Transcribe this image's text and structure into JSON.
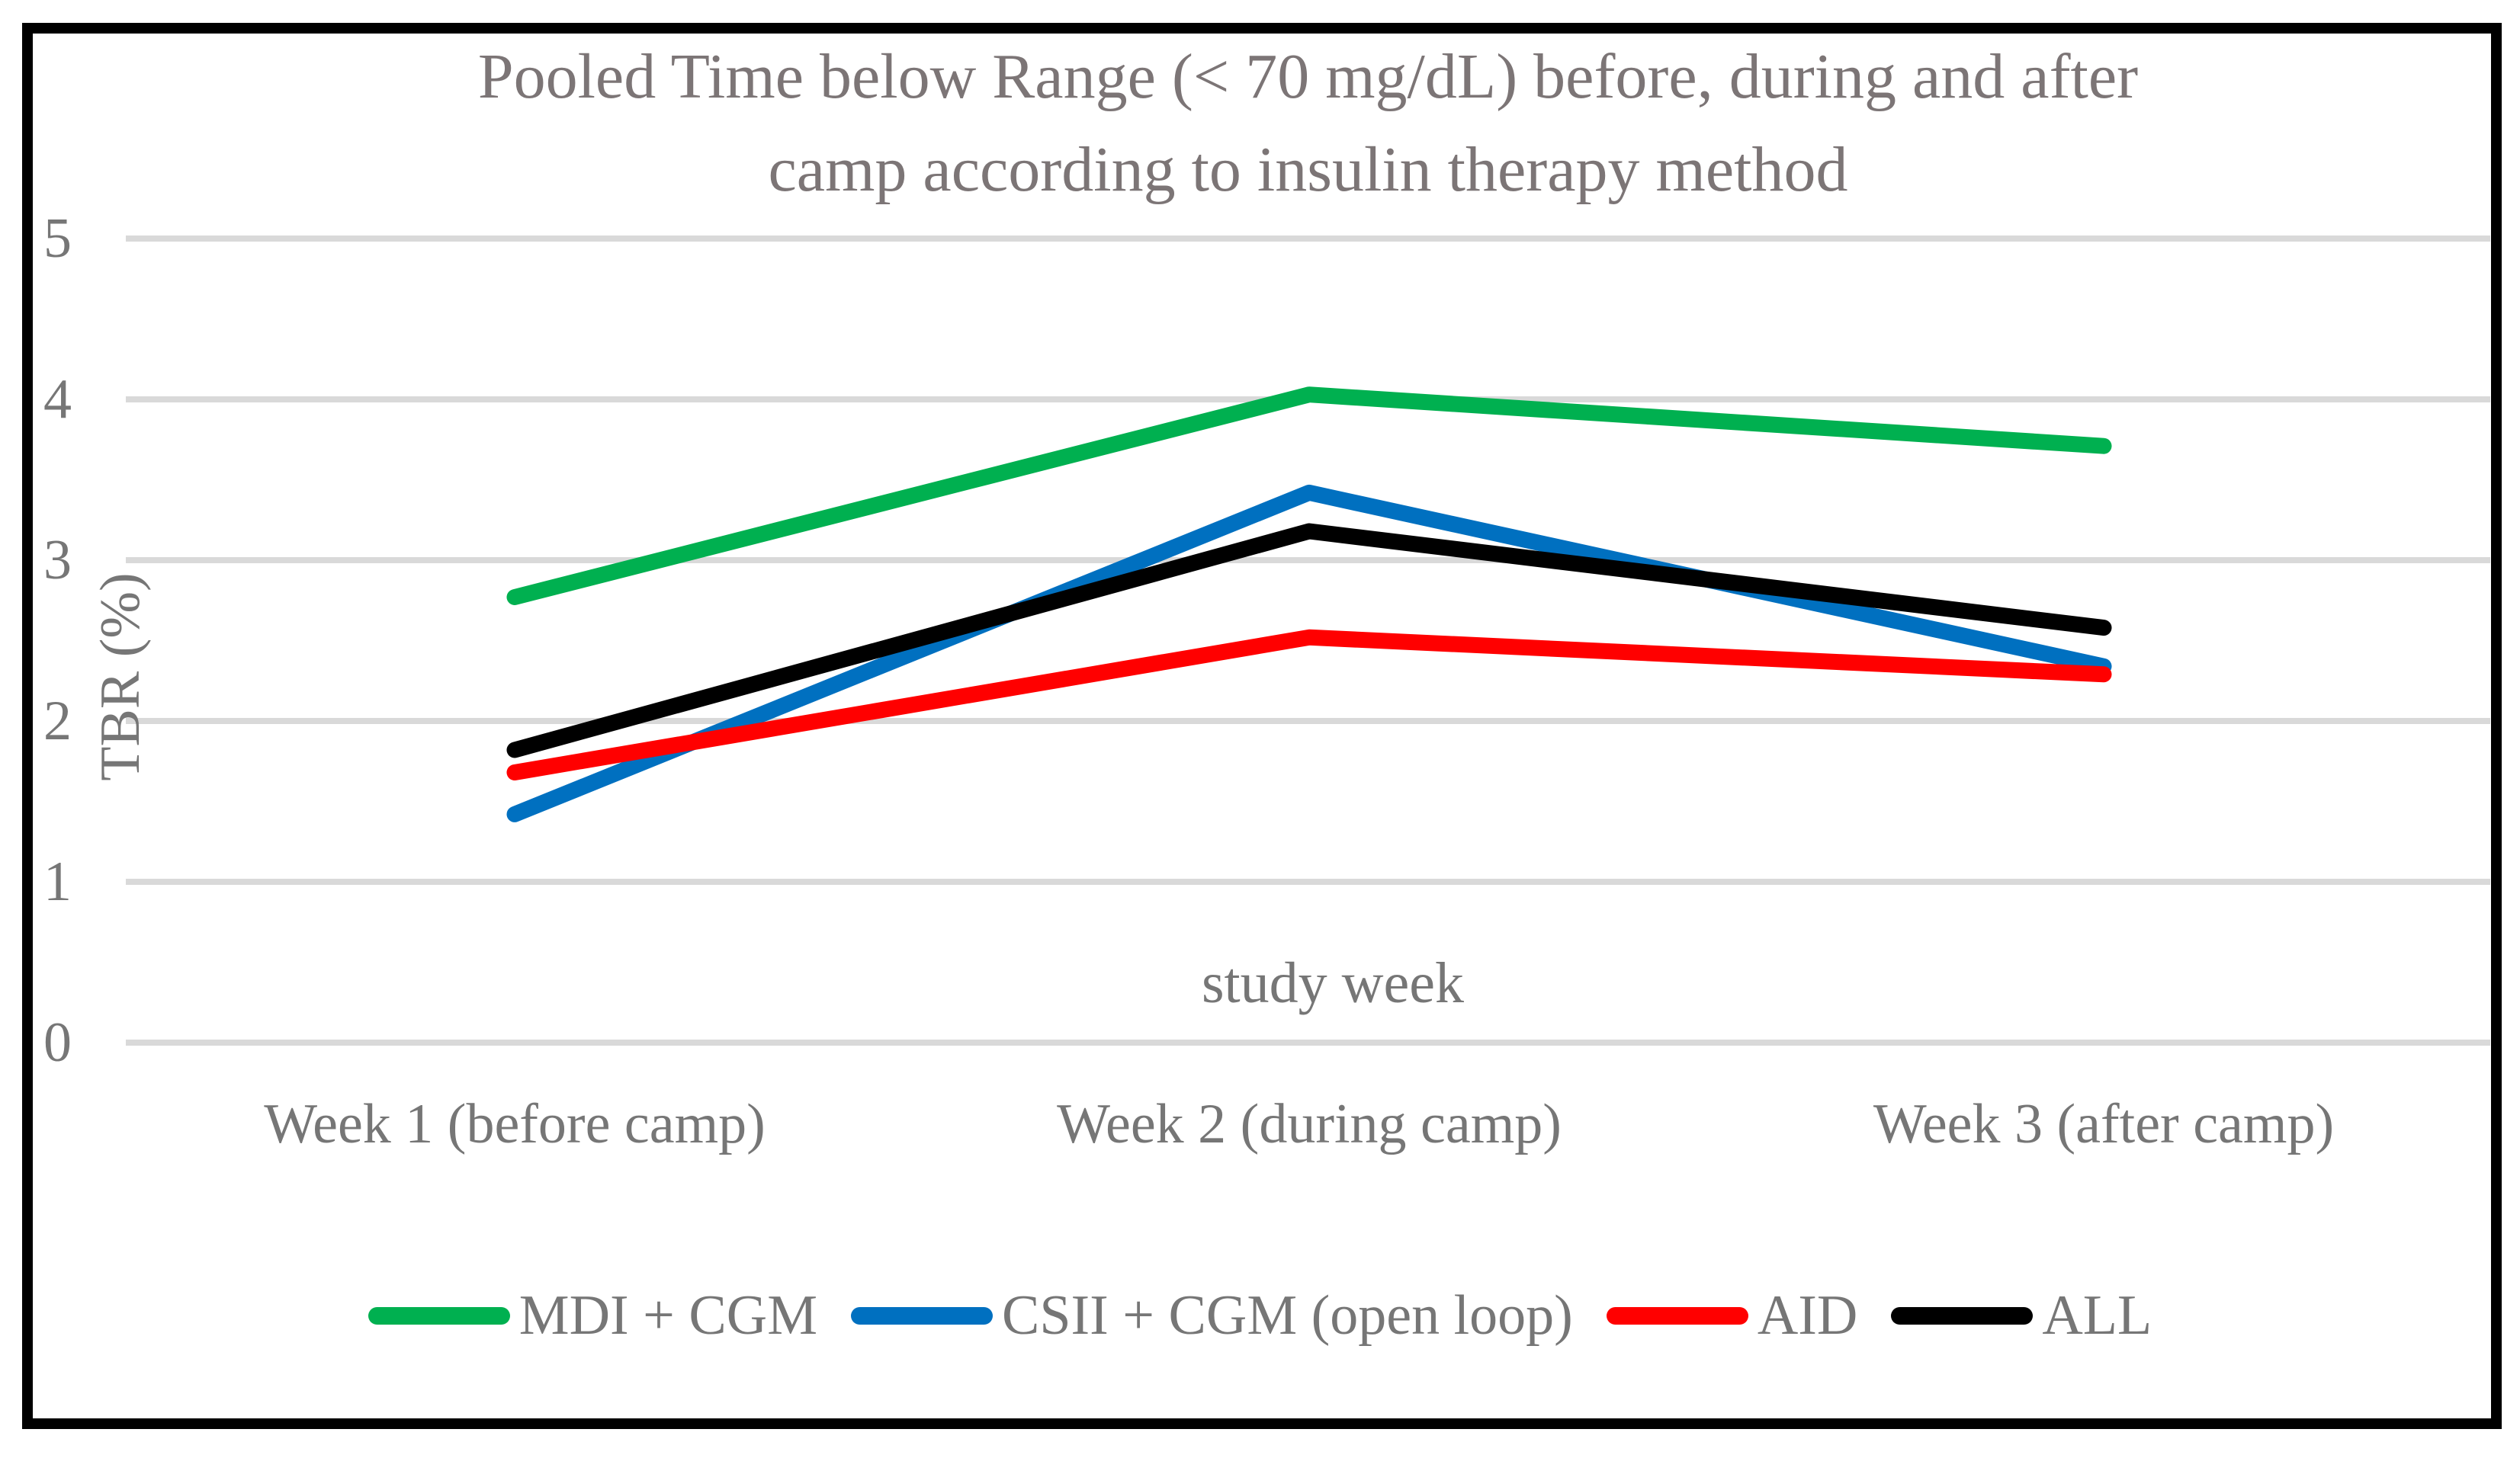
{
  "title": {
    "line1": "Pooled Time below Range (< 70 mg/dL) before, during and after",
    "line2": "camp according to insulin therapy method",
    "color": "#7C7576"
  },
  "chart_data": {
    "type": "line",
    "title": "Pooled Time below Range (< 70 mg/dL) before, during and after camp according to insulin therapy method",
    "xlabel": "study week",
    "ylabel": "TBR (%)",
    "categories": [
      "Week 1 (before camp)",
      "Week 2 (during camp)",
      "Week 3 (after camp)"
    ],
    "series": [
      {
        "name": "MDI + CGM",
        "color": "#00B050",
        "values": [
          2.77,
          4.03,
          3.71
        ]
      },
      {
        "name": "CSII + CGM (open loop)",
        "color": "#0070C0",
        "values": [
          1.42,
          3.42,
          2.34
        ]
      },
      {
        "name": "AID",
        "color": "#FF0000",
        "values": [
          1.68,
          2.52,
          2.29
        ]
      },
      {
        "name": "ALL",
        "color": "#000000",
        "values": [
          1.82,
          3.18,
          2.58
        ]
      }
    ],
    "ylim": [
      0,
      5
    ],
    "yticks": [
      0,
      1,
      2,
      3,
      4,
      5
    ],
    "y_tick_labels_top_to_bottom": [
      "5",
      "4",
      "3",
      "2",
      "1",
      "0"
    ],
    "grid": true,
    "gridline_color": "#D9D9D9",
    "legend_position": "bottom",
    "axis_text_color": "#767676"
  }
}
